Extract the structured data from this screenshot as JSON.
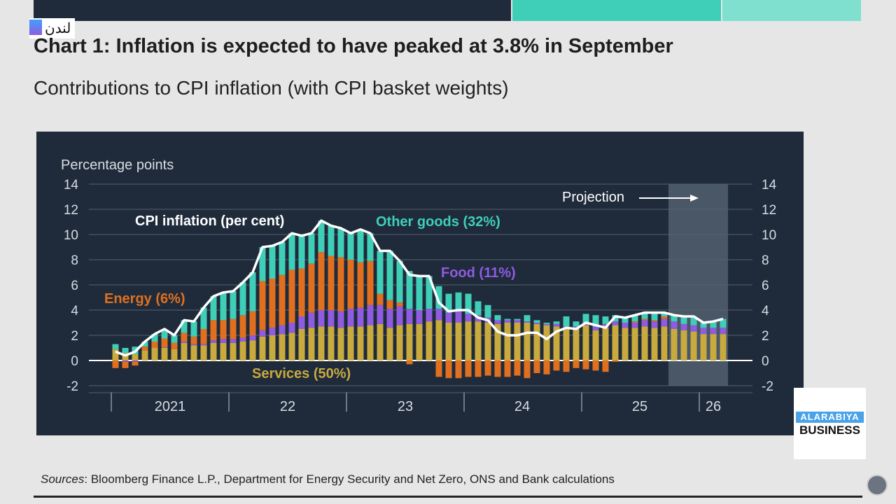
{
  "header": {
    "title": "Chart 1: Inflation is expected to have peaked at 3.8% in September",
    "subtitle": "Contributions to CPI inflation (with CPI basket weights)",
    "channel_label": "لندن",
    "colors": {
      "dark": "#1f2b3b",
      "teal": "#3fcfb8",
      "light_teal": "#7fe0cf"
    }
  },
  "footer": {
    "sources_label": "Sources",
    "sources_text": ": Bloomberg Finance L.P., Department for Energy Security and Net Zero, ONS and Bank calculations"
  },
  "logo": {
    "line1": "ALARABIYA",
    "line2": "BUSINESS"
  },
  "chart_data": {
    "type": "bar",
    "stacked": true,
    "ylabel": "Percentage points",
    "ylim": [
      -2,
      14
    ],
    "yticks": [
      -2,
      0,
      2,
      4,
      6,
      8,
      10,
      12,
      14
    ],
    "xtick_labels": [
      "2021",
      "22",
      "23",
      "24",
      "25",
      "26"
    ],
    "x_start": "2021-01",
    "x_end": "2026-03",
    "frequency": "monthly",
    "projection_label": "Projection",
    "projection_start": "2025-10",
    "grid": true,
    "series": [
      {
        "name": "Services (50%)",
        "color": "#c9aa3e",
        "values": [
          0.9,
          0.6,
          0.5,
          0.8,
          1.0,
          1.0,
          0.9,
          1.4,
          1.2,
          1.2,
          1.4,
          1.4,
          1.4,
          1.5,
          1.6,
          1.9,
          2.0,
          2.1,
          2.2,
          2.5,
          2.6,
          2.7,
          2.7,
          2.6,
          2.7,
          2.7,
          2.8,
          2.9,
          2.6,
          2.8,
          2.9,
          2.9,
          3.1,
          3.2,
          3.0,
          3.0,
          3.1,
          3.1,
          3.0,
          2.9,
          3.0,
          3.0,
          3.0,
          2.9,
          2.8,
          2.7,
          2.5,
          2.5,
          2.8,
          2.4,
          2.6,
          2.8,
          2.6,
          2.6,
          2.7,
          2.6,
          2.7,
          2.5,
          2.4,
          2.3,
          2.1,
          2.1,
          2.1
        ]
      },
      {
        "name": "Food (11%)",
        "color": "#8f5be0",
        "values": [
          0,
          -0.1,
          -0.1,
          0,
          0,
          0.05,
          0,
          0.1,
          0.1,
          0.1,
          0.2,
          0.3,
          0.3,
          0.3,
          0.4,
          0.5,
          0.6,
          0.7,
          0.8,
          1.0,
          1.2,
          1.3,
          1.3,
          1.3,
          1.4,
          1.5,
          1.6,
          1.5,
          1.5,
          1.5,
          1.2,
          1.1,
          1.0,
          0.9,
          0.8,
          0.9,
          0.6,
          0.5,
          0.4,
          0.3,
          0.2,
          0.2,
          0.1,
          0.1,
          0.1,
          0.2,
          0.2,
          0.2,
          0.2,
          0.3,
          0.3,
          0.3,
          0.4,
          0.4,
          0.5,
          0.5,
          0.6,
          0.6,
          0.5,
          0.5,
          0.5,
          0.5,
          0.5
        ]
      },
      {
        "name": "Energy (6%)",
        "color": "#e0701f",
        "values": [
          -0.6,
          -0.5,
          -0.3,
          0.3,
          0.5,
          0.7,
          0.5,
          0.7,
          0.6,
          1.2,
          1.6,
          1.5,
          1.6,
          1.8,
          1.9,
          3.9,
          3.9,
          4.0,
          4.2,
          3.8,
          3.9,
          4.6,
          4.3,
          4.3,
          3.9,
          3.6,
          3.5,
          0.9,
          0.7,
          0.3,
          -0.3,
          0,
          0,
          -1.3,
          -1.4,
          -1.4,
          -1.3,
          -1.3,
          -1.2,
          -1.3,
          -1.3,
          -1.2,
          -1.4,
          -1.0,
          -1.1,
          -0.8,
          -0.9,
          -0.6,
          -0.7,
          -0.8,
          -0.9,
          -0.1,
          0,
          0.1,
          0.1,
          0.1,
          0.2,
          0,
          0,
          0,
          0,
          0,
          0
        ]
      },
      {
        "name": "Other goods (32%)",
        "color": "#3fcfb8",
        "values": [
          0.4,
          0.4,
          0.6,
          0.4,
          0.6,
          0.7,
          0.6,
          1.0,
          1.2,
          1.7,
          1.9,
          2.2,
          2.2,
          2.6,
          3.1,
          2.7,
          2.6,
          2.6,
          2.9,
          2.6,
          2.4,
          2.5,
          2.4,
          2.3,
          2.1,
          2.6,
          2.2,
          3.4,
          3.9,
          3.3,
          3.0,
          2.7,
          2.6,
          1.8,
          1.5,
          1.5,
          1.6,
          1.1,
          1.0,
          0.4,
          0.1,
          0.1,
          0.5,
          0.2,
          0.1,
          0.2,
          0.8,
          0.4,
          0.7,
          0.9,
          0.6,
          0.5,
          0.4,
          0.5,
          0.5,
          0.6,
          0.3,
          0.5,
          0.6,
          0.7,
          0.4,
          0.5,
          0.7
        ]
      }
    ],
    "line": {
      "name": "CPI inflation (per cent)",
      "color": "#ffffff",
      "values": [
        0.7,
        0.4,
        0.7,
        1.5,
        2.1,
        2.5,
        2.0,
        3.2,
        3.1,
        4.2,
        5.1,
        5.4,
        5.5,
        6.2,
        7.0,
        9.0,
        9.1,
        9.4,
        10.1,
        9.9,
        10.1,
        11.1,
        10.7,
        10.5,
        10.1,
        10.4,
        10.1,
        8.7,
        8.7,
        7.9,
        6.8,
        6.7,
        6.7,
        4.6,
        3.9,
        4.0,
        4.0,
        3.4,
        3.2,
        2.3,
        2.0,
        2.0,
        2.2,
        2.2,
        1.7,
        2.3,
        2.6,
        2.5,
        3.0,
        2.8,
        2.6,
        3.5,
        3.4,
        3.6,
        3.8,
        3.8,
        3.8,
        3.6,
        3.5,
        3.5,
        3.0,
        3.1,
        3.3
      ]
    }
  }
}
